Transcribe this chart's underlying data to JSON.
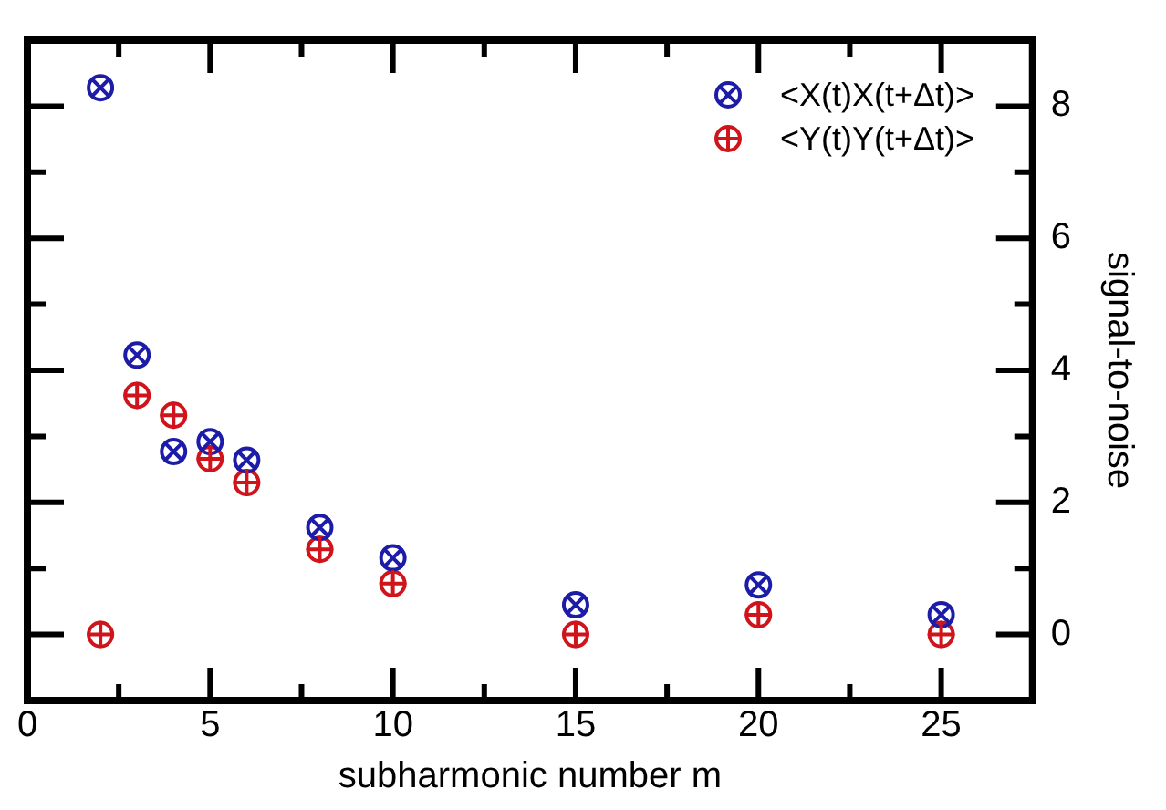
{
  "chart_data": {
    "type": "scatter",
    "xlabel": "subharmonic number m",
    "ylabel": "signal-to-noise",
    "xlim": [
      0,
      27.5
    ],
    "xticks": [
      0,
      5,
      10,
      15,
      20,
      25
    ],
    "ylim": [
      -1,
      9
    ],
    "yticks": [
      0,
      2,
      4,
      6,
      8
    ],
    "x": [
      2,
      3,
      4,
      5,
      6,
      8,
      10,
      15,
      20,
      25
    ],
    "series": [
      {
        "name": "<X(t)X(t+Δt)>",
        "color": "#1c1ca8",
        "values": [
          8.28,
          4.23,
          2.77,
          2.92,
          2.64,
          1.62,
          1.16,
          0.45,
          0.75,
          0.3
        ]
      },
      {
        "name": "<Y(t)Y(t+Δt)>",
        "color": "#d0141c",
        "values": [
          0,
          3.62,
          3.32,
          2.66,
          2.3,
          1.29,
          0.77,
          0,
          0.3,
          0
        ]
      }
    ],
    "marker": "circle",
    "legend": "top right",
    "grid": false
  }
}
